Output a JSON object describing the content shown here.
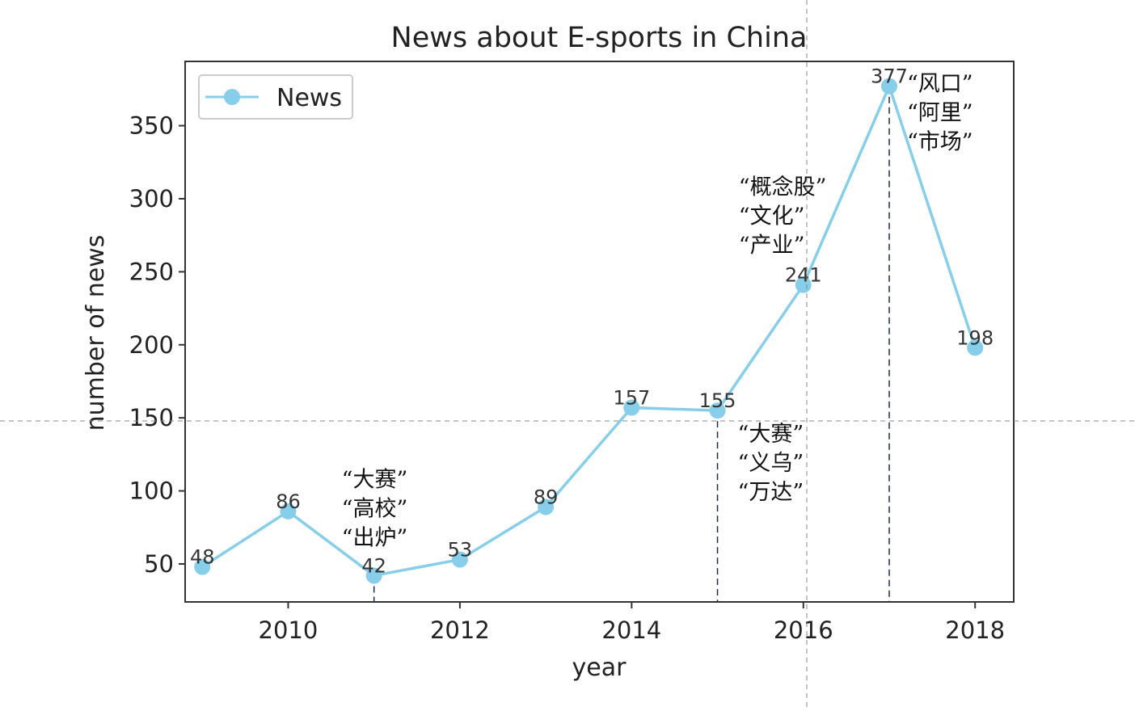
{
  "chart_data": {
    "type": "line",
    "title": "News about E-sports in China",
    "xlabel": "year",
    "ylabel": "number of news",
    "xlim": [
      2008.8,
      2018.45
    ],
    "ylim": [
      24,
      394
    ],
    "x_ticks": [
      2010,
      2012,
      2014,
      2016,
      2018
    ],
    "y_ticks": [
      50,
      100,
      150,
      200,
      250,
      300,
      350
    ],
    "grid": false,
    "legend_position": "top-left",
    "series": [
      {
        "name": "News",
        "color": "#87CEEB",
        "x": [
          2009,
          2010,
          2011,
          2012,
          2013,
          2014,
          2015,
          2016,
          2017,
          2018
        ],
        "values": [
          48,
          86,
          42,
          53,
          89,
          157,
          155,
          241,
          377,
          198
        ]
      }
    ],
    "markers": [
      {
        "x": 2011,
        "y": 42
      },
      {
        "x": 2015,
        "y": 155
      },
      {
        "x": 2017,
        "y": 377
      }
    ],
    "annotations": [
      {
        "x": 2011,
        "y": 42,
        "lines": [
          "“大赛”",
          "“高校”",
          "“出炉”"
        ]
      },
      {
        "x": 2015,
        "y": 155,
        "lines": [
          "“大赛”",
          "“义乌”",
          "“万达”"
        ]
      },
      {
        "x": 2016,
        "y": 241,
        "lines": [
          "“概念股”",
          "“文化”",
          "“产业”"
        ]
      },
      {
        "x": 2017,
        "y": 377,
        "lines": [
          "“风口”",
          "“阿里”",
          "“市场”"
        ]
      }
    ]
  }
}
